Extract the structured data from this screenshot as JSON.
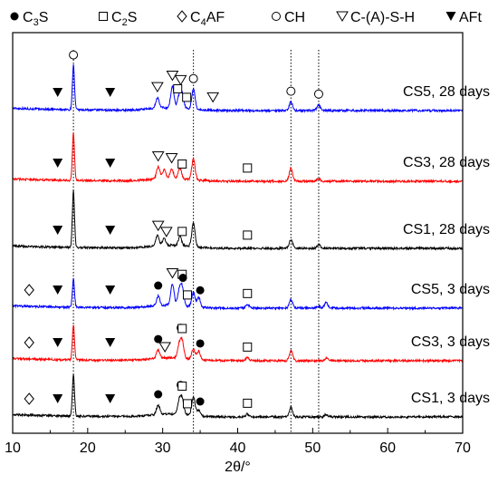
{
  "chart_data": {
    "type": "line",
    "xlabel": "2θ/°",
    "ylabel": "",
    "xlim": [
      10,
      70
    ],
    "xticks": [
      "10",
      "20",
      "30",
      "40",
      "50",
      "60",
      "70"
    ],
    "grid": false,
    "legend_position": "top",
    "legend": [
      {
        "symbol": "filled-circle",
        "label": "C3S",
        "main": "C",
        "sub": "3",
        "tail": "S"
      },
      {
        "symbol": "open-square",
        "label": "C2S",
        "main": "C",
        "sub": "2",
        "tail": "S"
      },
      {
        "symbol": "open-diamond",
        "label": "C4AF",
        "main": "C",
        "sub": "4",
        "tail": "AF"
      },
      {
        "symbol": "open-circle",
        "label": "CH",
        "main": "CH",
        "sub": "",
        "tail": ""
      },
      {
        "symbol": "open-triangle-down",
        "label": "C-(A)-S-H",
        "main": "C-(A)-S-H",
        "sub": "",
        "tail": ""
      },
      {
        "symbol": "filled-triangle-down",
        "label": "AFt",
        "main": "AFt",
        "sub": "",
        "tail": ""
      }
    ],
    "reference_lines_x": [
      18.1,
      34.1,
      47.1,
      50.8
    ],
    "series": [
      {
        "name": "CS5, 28 days",
        "color": "#0000ff",
        "offset": 6,
        "peaks": [
          [
            18.1,
            0.95
          ],
          [
            29.3,
            0.22
          ],
          [
            31.3,
            0.45
          ],
          [
            32.2,
            0.25
          ],
          [
            32.6,
            0.3
          ],
          [
            34.1,
            0.42
          ],
          [
            47.1,
            0.18
          ],
          [
            50.8,
            0.12
          ]
        ],
        "markers": [
          {
            "s": "filled-triangle-down",
            "x": 16.0
          },
          {
            "s": "filled-triangle-down",
            "x": 23.0
          },
          {
            "s": "open-circle",
            "x": 18.1
          },
          {
            "s": "open-triangle-down",
            "x": 29.3
          },
          {
            "s": "open-triangle-down",
            "x": 31.3
          },
          {
            "s": "open-triangle-down",
            "x": 32.4
          },
          {
            "s": "open-square",
            "x": 32.0
          },
          {
            "s": "open-square",
            "x": 33.2
          },
          {
            "s": "open-circle",
            "x": 34.1
          },
          {
            "s": "open-triangle-down",
            "x": 36.7
          },
          {
            "s": "open-circle",
            "x": 47.1
          },
          {
            "s": "open-circle",
            "x": 50.8
          }
        ]
      },
      {
        "name": "CS3, 28 days",
        "color": "#ff0000",
        "offset": 5,
        "peaks": [
          [
            18.1,
            1.0
          ],
          [
            29.4,
            0.25
          ],
          [
            30.2,
            0.18
          ],
          [
            31.2,
            0.2
          ],
          [
            32.3,
            0.22
          ],
          [
            34.1,
            0.45
          ],
          [
            47.1,
            0.28
          ],
          [
            50.8,
            0.06
          ]
        ],
        "markers": [
          {
            "s": "filled-triangle-down",
            "x": 16.0
          },
          {
            "s": "filled-triangle-down",
            "x": 23.0
          },
          {
            "s": "open-triangle-down",
            "x": 29.4
          },
          {
            "s": "open-triangle-down",
            "x": 31.2
          },
          {
            "s": "open-square",
            "x": 32.6
          },
          {
            "s": "open-square",
            "x": 41.3
          }
        ]
      },
      {
        "name": "CS1, 28 days",
        "color": "#000000",
        "offset": 4,
        "peaks": [
          [
            18.1,
            1.2
          ],
          [
            29.3,
            0.22
          ],
          [
            30.2,
            0.15
          ],
          [
            32.3,
            0.2
          ],
          [
            34.1,
            0.5
          ],
          [
            47.1,
            0.18
          ],
          [
            50.8,
            0.08
          ]
        ],
        "markers": [
          {
            "s": "filled-triangle-down",
            "x": 16.0
          },
          {
            "s": "filled-triangle-down",
            "x": 23.0
          },
          {
            "s": "open-triangle-down",
            "x": 29.4
          },
          {
            "s": "open-triangle-down",
            "x": 30.5
          },
          {
            "s": "open-square",
            "x": 32.6
          },
          {
            "s": "open-square",
            "x": 41.3
          }
        ]
      },
      {
        "name": "CS5, 3 days",
        "color": "#0000ff",
        "offset": 3,
        "peaks": [
          [
            18.1,
            0.6
          ],
          [
            29.4,
            0.2
          ],
          [
            31.3,
            0.45
          ],
          [
            32.2,
            0.3
          ],
          [
            32.6,
            0.38
          ],
          [
            34.1,
            0.3
          ],
          [
            34.8,
            0.2
          ],
          [
            41.3,
            0.08
          ],
          [
            47.1,
            0.18
          ],
          [
            50.8,
            0.05
          ],
          [
            51.8,
            0.12
          ]
        ],
        "markers": [
          {
            "s": "open-diamond",
            "x": 12.2
          },
          {
            "s": "filled-triangle-down",
            "x": 16.0
          },
          {
            "s": "filled-triangle-down",
            "x": 23.0
          },
          {
            "s": "filled-circle",
            "x": 29.4
          },
          {
            "s": "open-triangle-down",
            "x": 31.3
          },
          {
            "s": "open-square",
            "x": 32.6
          },
          {
            "s": "open-square",
            "x": 33.3
          },
          {
            "s": "filled-circle",
            "x": 32.7
          },
          {
            "s": "filled-circle",
            "x": 35.0
          },
          {
            "s": "open-square",
            "x": 41.3
          }
        ]
      },
      {
        "name": "CS3, 3 days",
        "color": "#ff0000",
        "offset": 2,
        "peaks": [
          [
            18.1,
            0.75
          ],
          [
            29.4,
            0.18
          ],
          [
            32.2,
            0.28
          ],
          [
            32.6,
            0.35
          ],
          [
            34.1,
            0.22
          ],
          [
            34.8,
            0.18
          ],
          [
            41.3,
            0.06
          ],
          [
            47.1,
            0.22
          ],
          [
            51.8,
            0.05
          ]
        ],
        "markers": [
          {
            "s": "open-diamond",
            "x": 12.2
          },
          {
            "s": "filled-triangle-down",
            "x": 16.0
          },
          {
            "s": "filled-triangle-down",
            "x": 23.0
          },
          {
            "s": "filled-circle",
            "x": 29.4
          },
          {
            "s": "open-triangle-down",
            "x": 30.3
          },
          {
            "s": "filled-circle",
            "x": 32.4
          },
          {
            "s": "open-square",
            "x": 32.6
          },
          {
            "s": "filled-circle",
            "x": 35.0
          },
          {
            "s": "open-square",
            "x": 41.3
          }
        ]
      },
      {
        "name": "CS1, 3 days",
        "color": "#000000",
        "offset": 1,
        "peaks": [
          [
            18.1,
            0.9
          ],
          [
            29.4,
            0.2
          ],
          [
            32.2,
            0.28
          ],
          [
            32.6,
            0.32
          ],
          [
            34.1,
            0.4
          ],
          [
            34.8,
            0.12
          ],
          [
            41.3,
            0.06
          ],
          [
            47.1,
            0.2
          ],
          [
            51.8,
            0.05
          ]
        ],
        "markers": [
          {
            "s": "open-diamond",
            "x": 12.2
          },
          {
            "s": "filled-triangle-down",
            "x": 16.0
          },
          {
            "s": "filled-triangle-down",
            "x": 23.0
          },
          {
            "s": "filled-circle",
            "x": 29.4
          },
          {
            "s": "filled-circle",
            "x": 32.4
          },
          {
            "s": "open-square",
            "x": 32.6
          },
          {
            "s": "open-square",
            "x": 33.3
          },
          {
            "s": "filled-circle",
            "x": 35.0
          },
          {
            "s": "open-square",
            "x": 41.3
          }
        ]
      }
    ]
  }
}
